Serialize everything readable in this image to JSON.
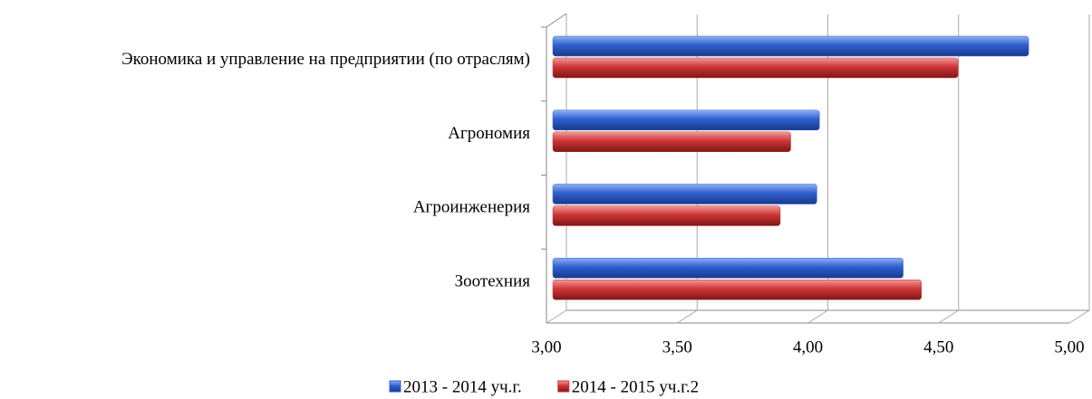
{
  "chart_data": {
    "type": "bar",
    "orientation": "horizontal",
    "categories": [
      "Экономика и управление на предприятии (по отраслям)",
      "Агрономия",
      "Агроинженерия",
      "Зоотехния"
    ],
    "series": [
      {
        "name": "2013 - 2014 уч.г.",
        "color": "#2f5fcf",
        "values": [
          4.82,
          4.02,
          4.01,
          4.34
        ]
      },
      {
        "name": "2014 - 2015 уч.г.2",
        "color": "#cf3535",
        "values": [
          4.55,
          3.91,
          3.87,
          4.41
        ]
      }
    ],
    "xlim": [
      3,
      5
    ],
    "xticks": [
      {
        "value": 3,
        "label": "3,00"
      },
      {
        "value": 3.5,
        "label": "3,50"
      },
      {
        "value": 4,
        "label": "4,00"
      },
      {
        "value": 4.5,
        "label": "4,50"
      },
      {
        "value": 5,
        "label": "5,00"
      }
    ],
    "grid": true,
    "legend": "bottom"
  }
}
